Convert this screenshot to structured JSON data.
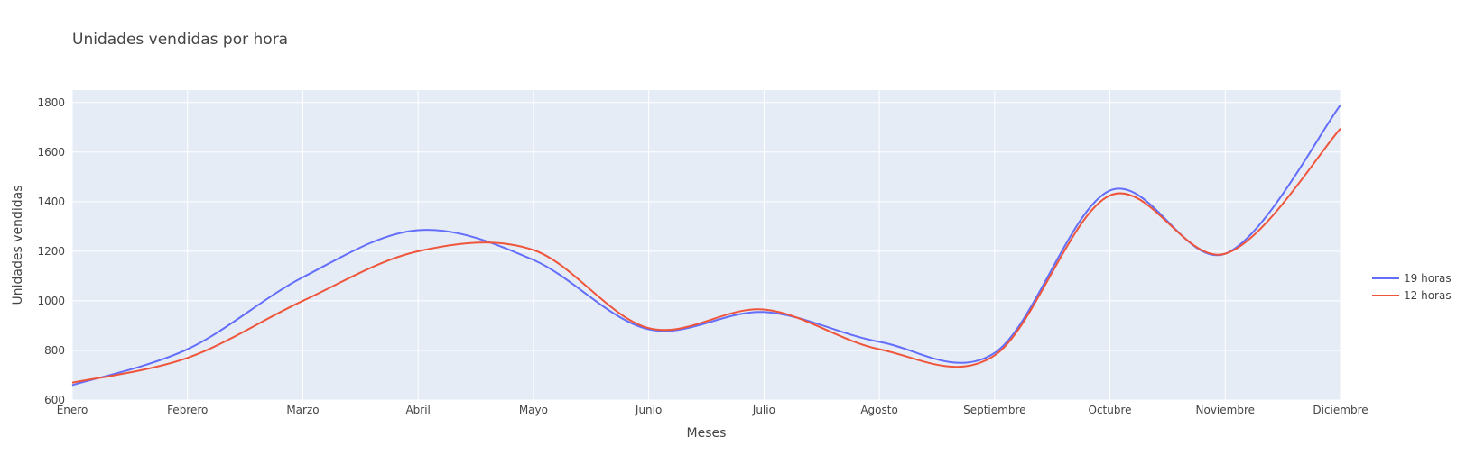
{
  "chart_data": {
    "type": "line",
    "title": "Unidades vendidas por hora",
    "xlabel": "Meses",
    "ylabel": "Unidades vendidas",
    "categories": [
      "Enero",
      "Febrero",
      "Marzo",
      "Abril",
      "Mayo",
      "Junio",
      "Julio",
      "Agosto",
      "Septiembre",
      "Octubre",
      "Noviembre",
      "Diciembre"
    ],
    "yticks": [
      "600",
      "800",
      "1000",
      "1200",
      "1400",
      "1600",
      "1800"
    ],
    "ylim": [
      600,
      1850
    ],
    "series": [
      {
        "name": "19 horas",
        "color": "#636efa",
        "values": [
          660,
          805,
          1095,
          1285,
          1165,
          885,
          955,
          835,
          790,
          1445,
          1190,
          1790
        ]
      },
      {
        "name": "12 horas",
        "color": "#ef553b",
        "values": [
          670,
          770,
          1000,
          1200,
          1205,
          890,
          965,
          805,
          780,
          1425,
          1190,
          1695
        ]
      }
    ],
    "grid": true,
    "legend_position": "right",
    "plot_background": "#e5ecf6",
    "line_shape": "spline"
  }
}
